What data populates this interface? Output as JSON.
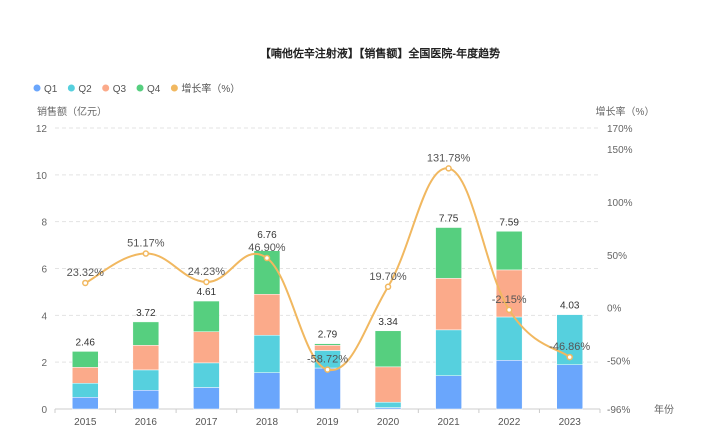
{
  "chart_data": {
    "type": "bar",
    "title": "【喃他佐辛注射液】【销售额】全国医院-年度趋势",
    "ylabel": "销售额（亿元）",
    "y2label": "增长率（%）",
    "xlabel": "年份",
    "ylim": [
      0,
      12
    ],
    "yticks": [
      "0",
      "2",
      "4",
      "6",
      "8",
      "10",
      "12"
    ],
    "y2lim": [
      -96,
      170
    ],
    "y2ticks": [
      "-96%",
      "-50%",
      "0%",
      "50%",
      "100%",
      "150%",
      "170%"
    ],
    "y2tick_values": [
      -96,
      -50,
      0,
      50,
      100,
      150,
      170
    ],
    "grid": true,
    "legend_position": "top-left",
    "categories": [
      "2015",
      "2016",
      "2017",
      "2018",
      "2019",
      "2020",
      "2021",
      "2022",
      "2023"
    ],
    "series": [
      {
        "name": "Q1",
        "color": "#6aa6fc",
        "values": [
          0.5,
          0.8,
          0.92,
          1.55,
          1.75,
          0.06,
          1.42,
          2.08,
          1.89
        ]
      },
      {
        "name": "Q2",
        "color": "#56d0de",
        "values": [
          0.6,
          0.87,
          1.05,
          1.6,
          0.75,
          0.23,
          1.96,
          1.85,
          2.14
        ]
      },
      {
        "name": "Q3",
        "color": "#fbaa8a",
        "values": [
          0.68,
          1.05,
          1.33,
          1.75,
          0.22,
          1.51,
          2.2,
          2.01,
          0
        ]
      },
      {
        "name": "Q4",
        "color": "#56cf7f",
        "values": [
          0.68,
          1.0,
          1.31,
          1.86,
          0.07,
          1.54,
          2.17,
          1.65,
          0
        ]
      }
    ],
    "totals": [
      "2.46",
      "3.72",
      "4.61",
      "6.76",
      "2.79",
      "3.34",
      "7.75",
      "7.59",
      "4.03"
    ],
    "growth": {
      "name": "增长率（%）",
      "color": "#f1b860",
      "values": [
        23.32,
        51.17,
        24.23,
        46.9,
        -58.72,
        19.7,
        131.78,
        -2.15,
        -46.86
      ],
      "labels": [
        "23.32%",
        "51.17%",
        "24.23%",
        "46.90%",
        "-58.72%",
        "19.70%",
        "131.78%",
        "-2.15%",
        "-46.86%"
      ]
    }
  }
}
